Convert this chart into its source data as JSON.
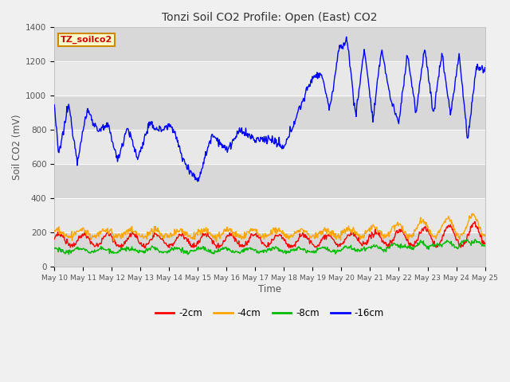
{
  "title": "Tonzi Soil CO2 Profile: Open (East) CO2",
  "ylabel": "Soil CO2 (mV)",
  "xlabel": "Time",
  "ylim": [
    0,
    1400
  ],
  "colors": {
    "2cm": "#ff0000",
    "4cm": "#ffa500",
    "8cm": "#00bb00",
    "16cm": "#0000ff"
  },
  "legend_labels": [
    "-2cm",
    "-4cm",
    "-8cm",
    "-16cm"
  ],
  "annotation_text": "TZ_soilco2",
  "annotation_bg": "#ffffcc",
  "annotation_border": "#cc8800",
  "fig_bg": "#f0f0f0",
  "band_colors": [
    "#d8d8d8",
    "#e8e8e8"
  ],
  "x_tick_labels": [
    "May 10",
    "May 11",
    "May 12",
    "May 13",
    "May 14",
    "May 15",
    "May 16",
    "May 17",
    "May 18",
    "May 19",
    "May 20",
    "May 21",
    "May 22",
    "May 23",
    "May 24",
    "May 25"
  ]
}
